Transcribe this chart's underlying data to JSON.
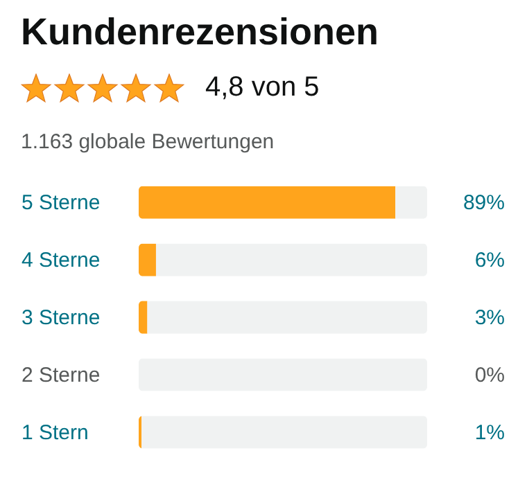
{
  "chart_data": {
    "type": "bar",
    "orientation": "horizontal",
    "stacked": true,
    "title": "Kundenrezensionen",
    "subtitle": "4,8 von 5",
    "annotations": [
      "1.163 globale Bewertungen"
    ],
    "categories": [
      "5 Sterne",
      "4 Sterne",
      "3 Sterne",
      "2 Sterne",
      "1 Stern"
    ],
    "series": [
      {
        "color": "#ffa41c",
        "values": [
          89,
          6,
          3,
          0,
          1
        ],
        "value_labels": [
          "89%",
          "6%",
          "3%",
          "0%",
          "1%"
        ]
      },
      {
        "color": "#f0f2f2",
        "values": [
          11,
          94,
          97,
          100,
          99
        ]
      }
    ],
    "xlim": [
      0,
      100
    ],
    "tick_labels": "y"
  }
}
